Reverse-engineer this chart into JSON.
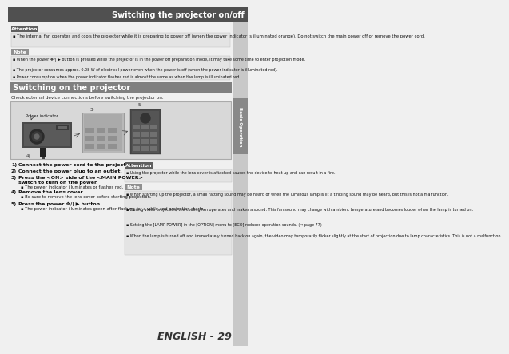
{
  "title": "Switching the projector on/off",
  "title_bg": "#505050",
  "title_fg": "#ffffff",
  "section2_title": "Switching on the projector",
  "section2_bg": "#808080",
  "section2_fg": "#ffffff",
  "attention_label": "Attention",
  "attention_bg": "#606060",
  "attention_fg": "#ffffff",
  "note_label": "Note",
  "note_bg": "#909090",
  "note_fg": "#ffffff",
  "page_bg": "#f0f0f0",
  "body_bg": "#f0f0f0",
  "attn_box_bg": "#e8e8e8",
  "note_box_bg": "#e8e8e8",
  "diagram_bg": "#d8d8d8",
  "diagram_border": "#aaaaaa",
  "attention_text": "The internal fan operates and cools the projector while it is preparing to power off (when the power indicator is illuminated orange). Do not switch the main power off or remove the power cord.",
  "note_bullets": [
    "When the power ❖/| ▶ button is pressed while the projector is in the power off preparation mode, it may take some time to enter projection mode.",
    "The projector consumes approx. 0.08 W of electrical power even when the power is off (when the power indicator is illuminated red).",
    "Power consumption when the power indicator flashes red is almost the same as when the lamp is illuminated red."
  ],
  "check_text": "Check external device connections before switching the projector on.",
  "steps_bold": [
    "1)  Connect the power cord to the projector.",
    "2)  Connect the power plug to an outlet.",
    "3)  Press the <ON> side of the <MAIN POWER>\n      switch to turn on the power.",
    "4)  Remove the lens cover.",
    "5)  Press the power ❖/| ▶ button."
  ],
  "step3_bullet": "The power indicator illuminates or flashes red.",
  "step4_bullet": "Be sure to remove the lens cover before starting projection.",
  "step5_bullet": "The power indicator illuminates green after flashing for a while and projection starts.",
  "attention2_text": "Using the projector while the lens cover is attached causes the device to heat up and can result in a fire.",
  "note2_bullets": [
    "When starting up the projector, a small rattling sound may be heard or when the luminous lamp is lit a tinkling sound may be heard, but this is not a malfunction.",
    "During video projection, the cooling fan operates and makes a sound. This fan sound may change with ambient temperature and becomes louder when the lamp is turned on.",
    "Setting the [LAMP POWER] in the [OPTION] menu to [ECO] reduces operation sounds. (⇒ page 77)",
    "When the lamp is turned off and immediately turned back on again, the video may temporarily flicker slightly at the start of projection due to lamp characteristics. This is not a malfunction."
  ],
  "side_label": "Basic Operation",
  "footer": "ENGLISH - 29"
}
